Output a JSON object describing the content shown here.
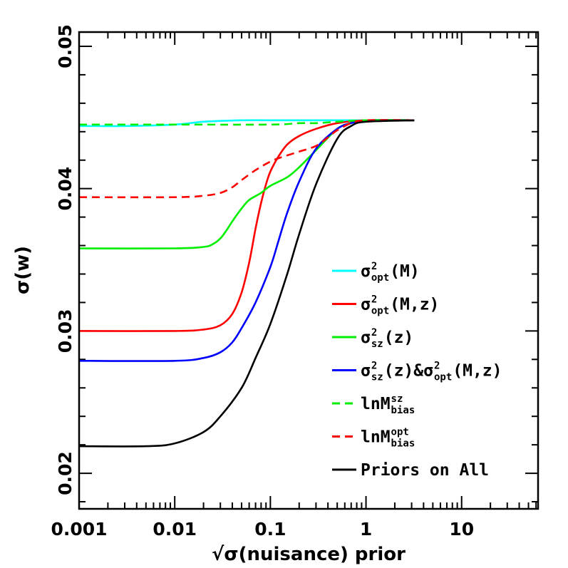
{
  "chart_data": {
    "type": "line",
    "xlabel": "√σ(nuisance) prior",
    "ylabel": "σ(w)",
    "x_scale": "log",
    "xlim": [
      0.001,
      63
    ],
    "ylim": [
      0.0175,
      0.051
    ],
    "x_ticks": [
      {
        "value": 0.001,
        "label": "0.001"
      },
      {
        "value": 0.01,
        "label": "0.01"
      },
      {
        "value": 0.1,
        "label": "0.1"
      },
      {
        "value": 1,
        "label": "1"
      },
      {
        "value": 10,
        "label": "10"
      }
    ],
    "y_ticks": [
      {
        "value": 0.02,
        "label": "0.02"
      },
      {
        "value": 0.03,
        "label": "0.03"
      },
      {
        "value": 0.04,
        "label": "0.04"
      },
      {
        "value": 0.05,
        "label": "0.05"
      }
    ],
    "legend_position": "bottom-right",
    "series": [
      {
        "name": "σ²opt(M)",
        "main": "σ",
        "sup": "2",
        "sub": "opt",
        "tail": "(M)",
        "color": "#00ffff",
        "dash": "solid",
        "x": [
          0.001,
          0.003,
          0.01,
          0.02,
          0.05,
          0.1,
          0.3,
          1,
          3.2
        ],
        "y": [
          0.0444,
          0.0444,
          0.0445,
          0.0447,
          0.0448,
          0.0448,
          0.0448,
          0.0448,
          0.0448
        ]
      },
      {
        "name": "σ²opt(M,z)",
        "main": "σ",
        "sup": "2",
        "sub": "opt",
        "tail": "(M,z)",
        "color": "#ff0000",
        "dash": "solid",
        "x": [
          0.001,
          0.01,
          0.02,
          0.03,
          0.04,
          0.05,
          0.06,
          0.07,
          0.08,
          0.09,
          0.1,
          0.12,
          0.15,
          0.2,
          0.3,
          0.5,
          1,
          3.2
        ],
        "y": [
          0.03,
          0.03,
          0.0301,
          0.0304,
          0.0312,
          0.0327,
          0.0348,
          0.0372,
          0.039,
          0.0403,
          0.0412,
          0.0422,
          0.0431,
          0.0437,
          0.0442,
          0.0446,
          0.0448,
          0.0448
        ]
      },
      {
        "name": "σ²sz(z)",
        "main": "σ",
        "sup": "2",
        "sub": "sz",
        "tail": "(z)",
        "color": "#00ee00",
        "dash": "solid",
        "x": [
          0.001,
          0.01,
          0.02,
          0.025,
          0.03,
          0.035,
          0.04,
          0.05,
          0.06,
          0.08,
          0.1,
          0.15,
          0.2,
          0.3,
          0.5,
          0.7,
          1,
          3.2
        ],
        "y": [
          0.0358,
          0.0358,
          0.0359,
          0.0361,
          0.0365,
          0.0371,
          0.0377,
          0.0386,
          0.0392,
          0.0397,
          0.0402,
          0.0408,
          0.0415,
          0.0427,
          0.0442,
          0.0446,
          0.0448,
          0.0448
        ]
      },
      {
        "name": "σ²sz(z)&σ²opt(M,z)",
        "main": "σ",
        "sup": "2",
        "sub": "sz",
        "tail": "(z)&σ",
        "sup2": "2",
        "sub2": "opt",
        "tail2": "(M,z)",
        "color": "#0000ff",
        "dash": "solid",
        "x": [
          0.001,
          0.01,
          0.02,
          0.03,
          0.04,
          0.05,
          0.07,
          0.1,
          0.12,
          0.15,
          0.2,
          0.3,
          0.5,
          0.7,
          1,
          3.2
        ],
        "y": [
          0.0279,
          0.0279,
          0.0281,
          0.0285,
          0.0292,
          0.0302,
          0.032,
          0.0345,
          0.0362,
          0.0383,
          0.0405,
          0.0428,
          0.0442,
          0.0446,
          0.0448,
          0.0448
        ]
      },
      {
        "name": "lnMszbias",
        "main": "lnM",
        "sup": "sz",
        "sub": "bias",
        "tail": "",
        "color": "#00ee00",
        "dash": "dashed",
        "x": [
          0.001,
          0.01,
          0.1,
          0.2,
          0.3,
          0.5,
          1,
          3.2
        ],
        "y": [
          0.0445,
          0.0445,
          0.0445,
          0.0446,
          0.0446,
          0.0447,
          0.0448,
          0.0448
        ]
      },
      {
        "name": "lnMoptbias",
        "main": "lnM",
        "sup": "opt",
        "sub": "bias",
        "tail": "",
        "color": "#ff0000",
        "dash": "dashed",
        "x": [
          0.001,
          0.01,
          0.02,
          0.03,
          0.04,
          0.05,
          0.07,
          0.1,
          0.13,
          0.2,
          0.3,
          0.4,
          0.5,
          0.7,
          1,
          3.2
        ],
        "y": [
          0.0394,
          0.0394,
          0.0395,
          0.0397,
          0.0401,
          0.0406,
          0.0413,
          0.0419,
          0.0422,
          0.0426,
          0.043,
          0.0436,
          0.0441,
          0.0446,
          0.0448,
          0.0448
        ]
      },
      {
        "name": "Priors on All",
        "main": "Priors on All",
        "sup": "",
        "sub": "",
        "tail": "",
        "color": "#000000",
        "dash": "solid",
        "x": [
          0.001,
          0.005,
          0.01,
          0.02,
          0.03,
          0.05,
          0.07,
          0.1,
          0.15,
          0.2,
          0.3,
          0.5,
          0.7,
          1,
          3.2
        ],
        "y": [
          0.0219,
          0.0219,
          0.0221,
          0.0229,
          0.024,
          0.026,
          0.0281,
          0.0305,
          0.034,
          0.0368,
          0.0403,
          0.0435,
          0.0444,
          0.0447,
          0.0448
        ]
      }
    ]
  }
}
